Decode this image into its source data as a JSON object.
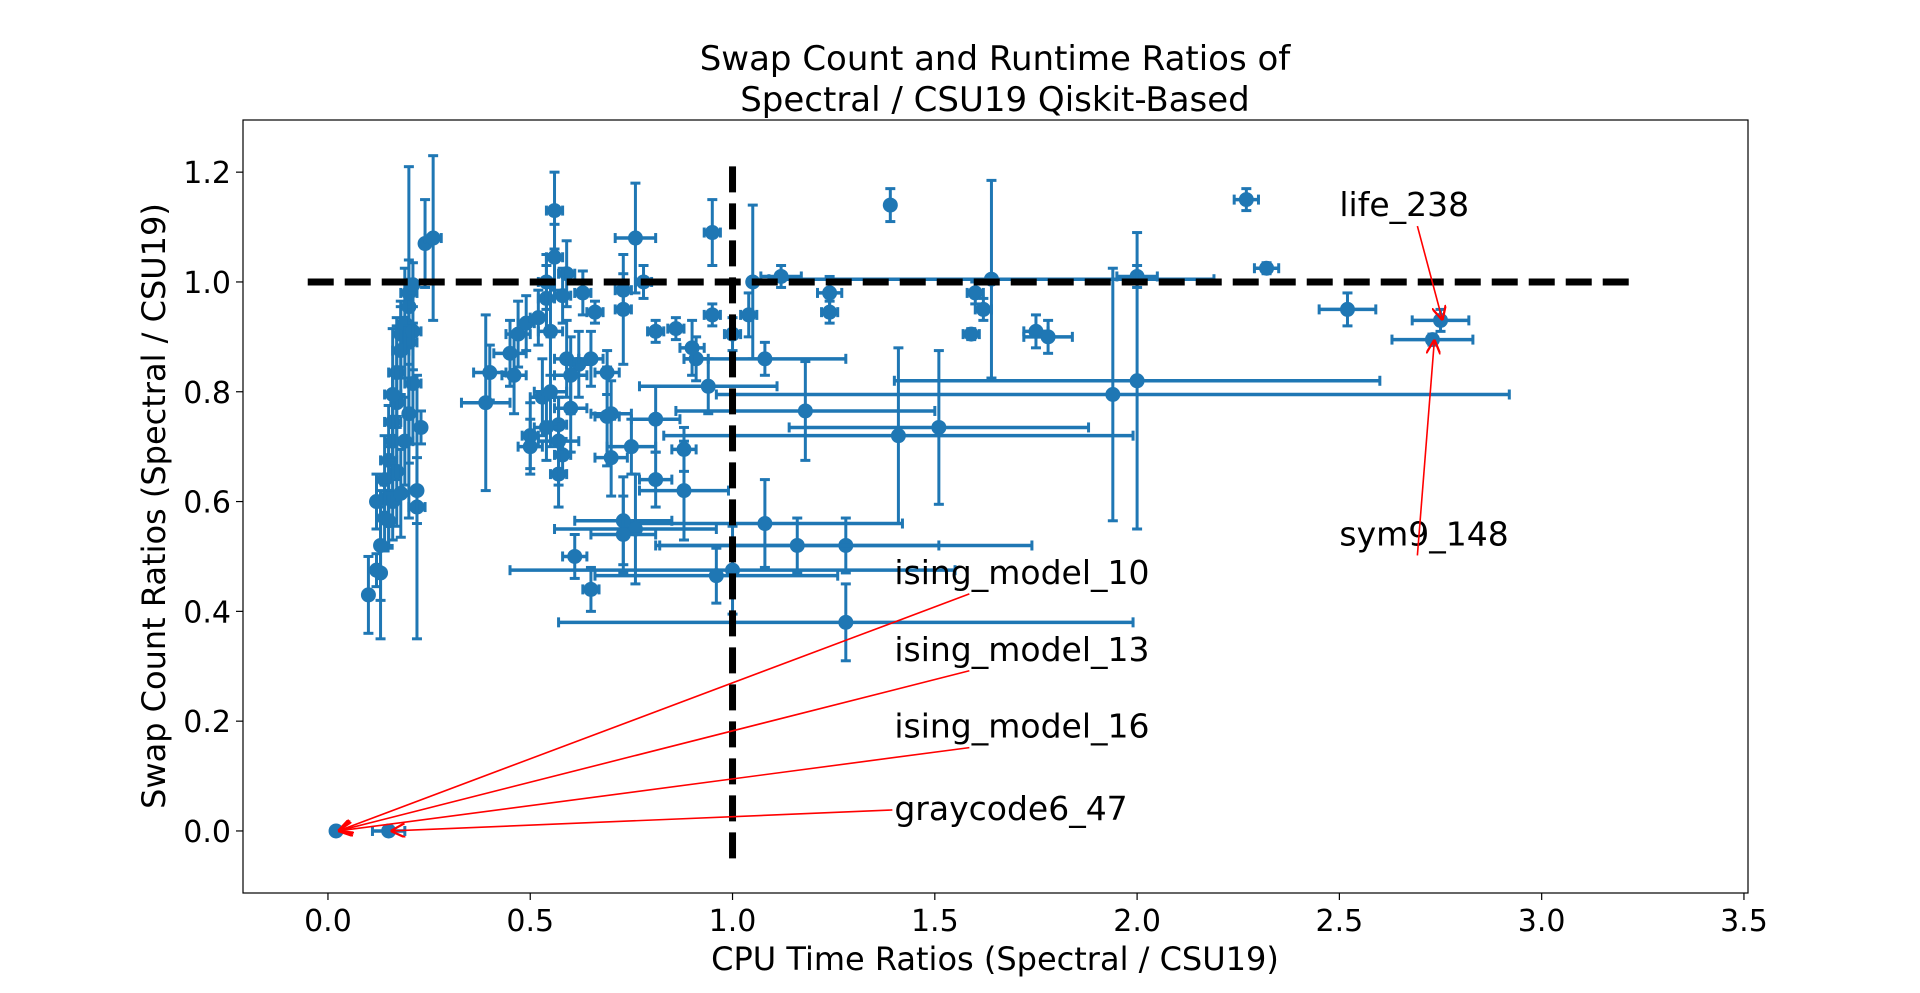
{
  "chart_data": {
    "type": "scatter",
    "title_lines": [
      "Swap Count and Runtime Ratios of",
      "Spectral / CSU19 Qiskit-Based"
    ],
    "xlabel": "CPU Time Ratios (Spectral / CSU19)",
    "ylabel": "Swap Count Ratios (Spectral / CSU19)",
    "xlim": [
      -0.21,
      3.51
    ],
    "ylim": [
      -0.113,
      1.295
    ],
    "xticks": [
      "0.0",
      "0.5",
      "1.0",
      "1.5",
      "2.0",
      "2.5",
      "3.0",
      "3.5"
    ],
    "yticks": [
      "0.0",
      "0.2",
      "0.4",
      "0.6",
      "0.8",
      "1.0",
      "1.2"
    ],
    "grid": false,
    "color": "#1f77b4",
    "error_bars": true,
    "point_format": [
      "x",
      "y",
      "xerr",
      "yerr"
    ],
    "points": [
      [
        0.02,
        0.0,
        0.008,
        0.0
      ],
      [
        0.15,
        0.0,
        0.04,
        0.0
      ],
      [
        0.1,
        0.43,
        0.01,
        0.07
      ],
      [
        0.12,
        0.6,
        0.01,
        0.05
      ],
      [
        0.13,
        0.47,
        0.01,
        0.12
      ],
      [
        0.2,
        0.89,
        0.02,
        0.32
      ],
      [
        0.24,
        1.07,
        0.01,
        0.08
      ],
      [
        0.26,
        1.08,
        0.02,
        0.15
      ],
      [
        0.22,
        0.59,
        0.02,
        0.24
      ],
      [
        0.22,
        0.62,
        0.01,
        0.06
      ],
      [
        0.23,
        0.735,
        0.01,
        0.03
      ],
      [
        0.14,
        0.64,
        0.01,
        0.08
      ],
      [
        0.15,
        0.675,
        0.02,
        0.1
      ],
      [
        0.16,
        0.71,
        0.01,
        0.12
      ],
      [
        0.16,
        0.745,
        0.02,
        0.09
      ],
      [
        0.17,
        0.78,
        0.01,
        0.14
      ],
      [
        0.17,
        0.835,
        0.02,
        0.1
      ],
      [
        0.18,
        0.905,
        0.01,
        0.06
      ],
      [
        0.18,
        0.875,
        0.02,
        0.08
      ],
      [
        0.19,
        0.925,
        0.01,
        0.1
      ],
      [
        0.2,
        0.955,
        0.01,
        0.05
      ],
      [
        0.2,
        0.98,
        0.02,
        0.06
      ],
      [
        0.21,
        0.995,
        0.01,
        0.04
      ],
      [
        0.21,
        0.91,
        0.02,
        0.07
      ],
      [
        0.21,
        0.815,
        0.02,
        0.11
      ],
      [
        0.2,
        0.76,
        0.01,
        0.09
      ],
      [
        0.19,
        0.71,
        0.02,
        0.08
      ],
      [
        0.17,
        0.655,
        0.01,
        0.1
      ],
      [
        0.16,
        0.6,
        0.01,
        0.07
      ],
      [
        0.15,
        0.61,
        0.02,
        0.09
      ],
      [
        0.14,
        0.57,
        0.01,
        0.06
      ],
      [
        0.16,
        0.795,
        0.02,
        0.12
      ],
      [
        0.15,
        0.565,
        0.01,
        0.05
      ],
      [
        0.13,
        0.52,
        0.01,
        0.1
      ],
      [
        0.12,
        0.475,
        0.01,
        0.03
      ],
      [
        0.18,
        0.615,
        0.01,
        0.08
      ],
      [
        0.56,
        1.13,
        0.02,
        0.07
      ],
      [
        0.95,
        1.09,
        0.02,
        0.06
      ],
      [
        0.76,
        1.08,
        0.05,
        0.1
      ],
      [
        1.39,
        1.14,
        0.01,
        0.03
      ],
      [
        2.27,
        1.15,
        0.03,
        0.02
      ],
      [
        2.32,
        1.025,
        0.03,
        0.01
      ],
      [
        2.0,
        1.01,
        0.05,
        0.02
      ],
      [
        1.64,
        1.005,
        0.55,
        0.18
      ],
      [
        1.05,
        1.0,
        0.01,
        0.14
      ],
      [
        1.12,
        1.01,
        0.05,
        0.02
      ],
      [
        0.78,
        1.0,
        0.02,
        0.03
      ],
      [
        1.24,
        0.98,
        0.03,
        0.03
      ],
      [
        1.24,
        0.945,
        0.02,
        0.02
      ],
      [
        1.6,
        0.98,
        0.02,
        0.02
      ],
      [
        1.62,
        0.95,
        0.02,
        0.02
      ],
      [
        1.59,
        0.905,
        0.02,
        0.01
      ],
      [
        1.75,
        0.91,
        0.03,
        0.03
      ],
      [
        1.78,
        0.9,
        0.06,
        0.03
      ],
      [
        2.52,
        0.95,
        0.07,
        0.03
      ],
      [
        2.75,
        0.93,
        0.07,
        0.02
      ],
      [
        2.73,
        0.895,
        0.1,
        0.01
      ],
      [
        2.0,
        0.82,
        0.6,
        0.27
      ],
      [
        1.94,
        0.795,
        0.98,
        0.23
      ],
      [
        1.51,
        0.735,
        0.37,
        0.14
      ],
      [
        1.41,
        0.72,
        0.58,
        0.16
      ],
      [
        1.18,
        0.765,
        0.32,
        0.09
      ],
      [
        1.28,
        0.52,
        0.46,
        0.05
      ],
      [
        1.28,
        0.38,
        0.71,
        0.07
      ],
      [
        1.16,
        0.52,
        0.35,
        0.05
      ],
      [
        1.08,
        0.56,
        0.34,
        0.08
      ],
      [
        1.0,
        0.475,
        0.55,
        0.08
      ],
      [
        0.96,
        0.465,
        0.3,
        0.05
      ],
      [
        1.08,
        0.86,
        0.2,
        0.03
      ],
      [
        1.0,
        0.905,
        0.02,
        0.03
      ],
      [
        0.95,
        0.94,
        0.02,
        0.02
      ],
      [
        1.04,
        0.94,
        0.02,
        0.04
      ],
      [
        0.94,
        0.81,
        0.17,
        0.05
      ],
      [
        0.91,
        0.86,
        0.03,
        0.04
      ],
      [
        0.86,
        0.915,
        0.02,
        0.02
      ],
      [
        0.81,
        0.91,
        0.02,
        0.02
      ],
      [
        0.9,
        0.88,
        0.03,
        0.05
      ],
      [
        0.88,
        0.62,
        0.11,
        0.09
      ],
      [
        0.88,
        0.695,
        0.03,
        0.04
      ],
      [
        0.81,
        0.64,
        0.04,
        0.05
      ],
      [
        0.81,
        0.75,
        0.06,
        0.06
      ],
      [
        0.73,
        0.565,
        0.12,
        0.08
      ],
      [
        0.76,
        0.55,
        0.2,
        0.1
      ],
      [
        0.73,
        0.54,
        0.08,
        0.07
      ],
      [
        0.75,
        0.7,
        0.06,
        0.05
      ],
      [
        0.7,
        0.76,
        0.05,
        0.06
      ],
      [
        0.69,
        0.755,
        0.03,
        0.09
      ],
      [
        0.7,
        0.68,
        0.04,
        0.07
      ],
      [
        0.69,
        0.835,
        0.03,
        0.04
      ],
      [
        0.66,
        0.945,
        0.02,
        0.02
      ],
      [
        0.73,
        0.95,
        0.02,
        0.1
      ],
      [
        0.73,
        0.985,
        0.02,
        0.03
      ],
      [
        0.61,
        0.5,
        0.03,
        0.04
      ],
      [
        0.65,
        0.44,
        0.02,
        0.04
      ],
      [
        0.57,
        0.65,
        0.02,
        0.06
      ],
      [
        0.58,
        0.685,
        0.02,
        0.03
      ],
      [
        0.57,
        0.71,
        0.05,
        0.08
      ],
      [
        0.57,
        0.74,
        0.02,
        0.05
      ],
      [
        0.53,
        0.79,
        0.03,
        0.07
      ],
      [
        0.5,
        0.72,
        0.02,
        0.06
      ],
      [
        0.5,
        0.7,
        0.03,
        0.05
      ],
      [
        0.39,
        0.78,
        0.06,
        0.16
      ],
      [
        0.4,
        0.835,
        0.04,
        0.05
      ],
      [
        0.46,
        0.83,
        0.03,
        0.07
      ],
      [
        0.47,
        0.905,
        0.03,
        0.06
      ],
      [
        0.49,
        0.925,
        0.02,
        0.05
      ],
      [
        0.54,
        0.97,
        0.02,
        0.06
      ],
      [
        0.54,
        1.0,
        0.02,
        0.05
      ],
      [
        0.56,
        1.045,
        0.02,
        0.06
      ],
      [
        0.59,
        1.015,
        0.02,
        0.06
      ],
      [
        0.63,
        0.98,
        0.02,
        0.04
      ],
      [
        0.58,
        0.975,
        0.02,
        0.05
      ],
      [
        0.55,
        0.91,
        0.03,
        0.08
      ],
      [
        0.59,
        0.86,
        0.03,
        0.07
      ],
      [
        0.62,
        0.85,
        0.03,
        0.06
      ],
      [
        0.65,
        0.86,
        0.03,
        0.05
      ],
      [
        0.55,
        0.8,
        0.04,
        0.1
      ],
      [
        0.6,
        0.77,
        0.04,
        0.08
      ],
      [
        0.54,
        0.735,
        0.03,
        0.06
      ],
      [
        0.52,
        0.935,
        0.02,
        0.05
      ],
      [
        0.45,
        0.87,
        0.04,
        0.06
      ],
      [
        0.6,
        0.83,
        0.04,
        0.07
      ]
    ],
    "reference_lines": [
      {
        "orientation": "horizontal",
        "value": 1.0,
        "from": -0.05,
        "to": 3.22,
        "style": "dashed",
        "color": "#000000"
      },
      {
        "orientation": "vertical",
        "value": 1.0,
        "from": -0.05,
        "to": 1.22,
        "style": "dashed",
        "color": "#000000"
      }
    ],
    "annotations": [
      {
        "text": "life_238",
        "text_x": 2.5,
        "text_y": 1.12,
        "target_x": 2.75,
        "target_y": 0.93
      },
      {
        "text": "sym9_148",
        "text_x": 2.5,
        "text_y": 0.52,
        "target_x": 2.73,
        "target_y": 0.895
      },
      {
        "text": "ising_model_10",
        "text_x": 1.4,
        "text_y": 0.45,
        "target_x": 0.02,
        "target_y": 0.0
      },
      {
        "text": "ising_model_13",
        "text_x": 1.4,
        "text_y": 0.31,
        "target_x": 0.02,
        "target_y": 0.0
      },
      {
        "text": "ising_model_16",
        "text_x": 1.4,
        "text_y": 0.17,
        "target_x": 0.02,
        "target_y": 0.0
      },
      {
        "text": "graycode6_47",
        "text_x": 1.4,
        "text_y": 0.02,
        "target_x": 0.15,
        "target_y": 0.0
      }
    ],
    "annotation_color": "#ff0000"
  }
}
